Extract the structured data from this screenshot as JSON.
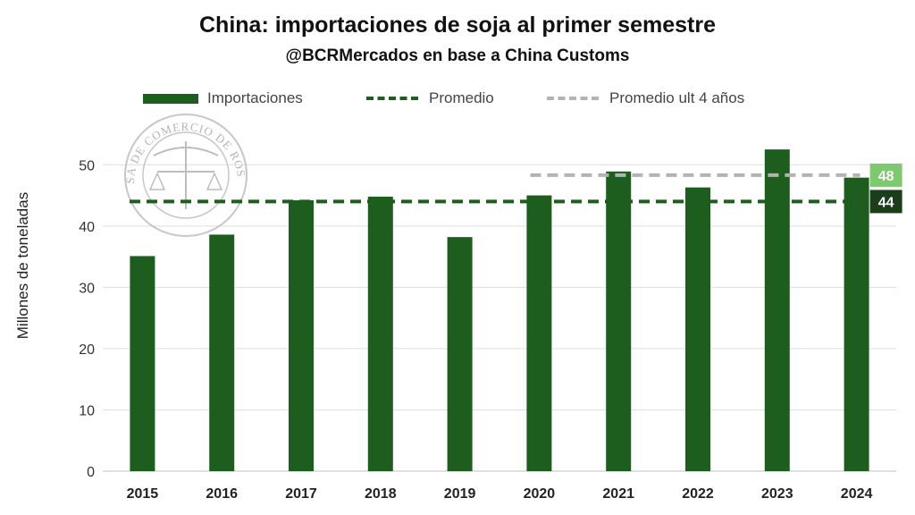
{
  "chart_data": {
    "type": "bar",
    "title": "China: importaciones de soja al primer semestre",
    "subtitle": "@BCRMercados en base a China Customs",
    "ylabel": "Millones de toneladas",
    "xlabel": "",
    "ylim": [
      0,
      55
    ],
    "yticks": [
      0,
      10,
      20,
      30,
      40,
      50
    ],
    "grid": true,
    "legend_position": "top",
    "categories": [
      "2015",
      "2016",
      "2017",
      "2018",
      "2019",
      "2020",
      "2021",
      "2022",
      "2023",
      "2024"
    ],
    "series": [
      {
        "name": "Importaciones",
        "color": "#1d5e1f",
        "values": [
          35.1,
          38.6,
          44.2,
          44.8,
          38.2,
          45.0,
          48.9,
          46.3,
          52.5,
          47.9
        ]
      }
    ],
    "reference_lines": [
      {
        "name": "Promedio",
        "color": "#1d5e1f",
        "value": 44,
        "from": "2015",
        "to": "2024",
        "label": "44",
        "label_bg": "#1a3d1a"
      },
      {
        "name": "Promedio ult 4 años",
        "color": "#b3b3b3",
        "value": 48.3,
        "from": "2020",
        "to": "2024",
        "label": "48",
        "label_bg": "#7ec96d"
      }
    ]
  },
  "watermark": {
    "text": "BOLSA DE COMERCIO DE ROSARIO"
  }
}
